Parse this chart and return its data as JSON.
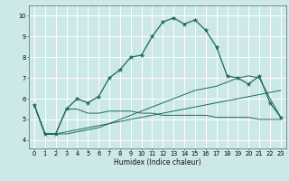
{
  "xlabel": "Humidex (Indice chaleur)",
  "bg_color": "#cce8e8",
  "grid_color": "#ffffff",
  "line_color": "#1a6b5a",
  "x_ticks": [
    0,
    1,
    2,
    3,
    4,
    5,
    6,
    7,
    8,
    9,
    10,
    11,
    12,
    13,
    14,
    15,
    16,
    17,
    18,
    19,
    20,
    21,
    22,
    23
  ],
  "y_ticks": [
    4,
    5,
    6,
    7,
    8,
    9,
    10
  ],
  "ylim": [
    3.6,
    10.5
  ],
  "xlim": [
    -0.5,
    23.5
  ],
  "main_line": [
    5.7,
    4.3,
    4.3,
    5.5,
    6.0,
    5.8,
    6.1,
    7.0,
    7.4,
    8.0,
    8.1,
    9.0,
    9.7,
    9.9,
    9.6,
    9.8,
    9.3,
    8.5,
    7.1,
    7.0,
    6.7,
    7.1,
    5.8,
    5.1
  ],
  "line2": [
    5.7,
    4.3,
    4.3,
    5.5,
    5.5,
    5.3,
    5.3,
    5.4,
    5.4,
    5.4,
    5.3,
    5.3,
    5.2,
    5.2,
    5.2,
    5.2,
    5.2,
    5.1,
    5.1,
    5.1,
    5.1,
    5.0,
    5.0,
    5.0
  ],
  "line3": [
    5.7,
    4.3,
    4.3,
    4.4,
    4.5,
    4.6,
    4.7,
    4.8,
    4.9,
    5.0,
    5.1,
    5.2,
    5.3,
    5.4,
    5.5,
    5.6,
    5.7,
    5.8,
    5.9,
    6.0,
    6.1,
    6.2,
    6.3,
    6.4
  ],
  "line4": [
    5.7,
    4.3,
    4.3,
    4.3,
    4.4,
    4.5,
    4.6,
    4.8,
    5.0,
    5.2,
    5.4,
    5.6,
    5.8,
    6.0,
    6.2,
    6.4,
    6.5,
    6.6,
    6.8,
    7.0,
    7.1,
    7.0,
    6.0,
    5.1
  ]
}
